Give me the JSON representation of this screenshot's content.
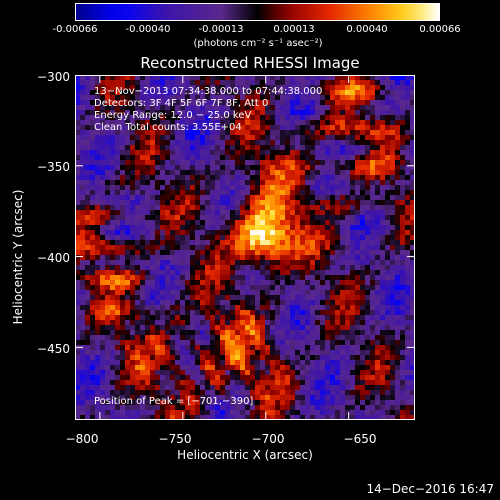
{
  "colorbar": {
    "ticks": [
      "-0.00066",
      "-0.00040",
      "-0.00013",
      "0.00013",
      "0.00040",
      "0.00066"
    ],
    "unit_label": "(photons cm⁻² s⁻¹ asec⁻²)",
    "range": [
      -0.00066,
      0.00066
    ]
  },
  "chart_data": {
    "type": "heatmap",
    "title": "Reconstructed RHESSI Image",
    "xlabel": "Heliocentric X (arcsec)",
    "ylabel": "Heliocentric Y (arcsec)",
    "xlim": [
      -815,
      -610
    ],
    "ylim": [
      -490,
      -300
    ],
    "x_ticks": [
      "−800",
      "−750",
      "−700",
      "−650"
    ],
    "x_tick_values": [
      -800,
      -750,
      -700,
      -650
    ],
    "y_ticks": [
      "−300",
      "−350",
      "−400",
      "−450"
    ],
    "y_tick_values": [
      -300,
      -350,
      -400,
      -450
    ],
    "peak": [
      -701,
      -390
    ],
    "annotations": [
      "13−Nov−2013 07:34:38.000 to 07:44:38.000",
      "Detectors: 3F 4F 5F 6F 7F 8F, Att 0",
      "Energy Range: 12.0 − 25.0 keV",
      "Clean     Total counts: 3.55E+04"
    ],
    "peak_label": "Position of Peak = [−701,−390]"
  },
  "timestamp": "14−Dec−2016 16:47"
}
